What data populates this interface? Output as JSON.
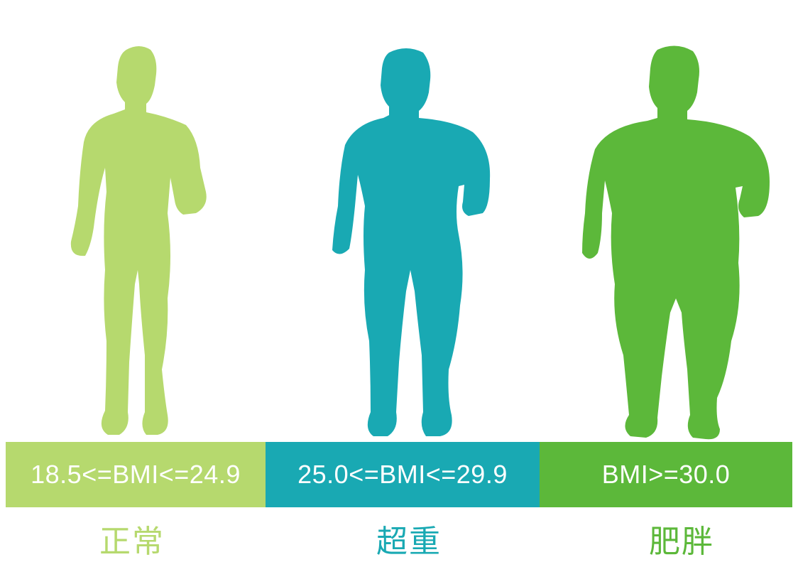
{
  "colors": {
    "normal": "#b6d96e",
    "overweight": "#19a9b3",
    "obese": "#5cb83a"
  },
  "categories": [
    {
      "id": "normal",
      "range": "18.5<=BMI<=24.9",
      "label": "正常"
    },
    {
      "id": "overweight",
      "range": "25.0<=BMI<=29.9",
      "label": "超重"
    },
    {
      "id": "obese",
      "range": "BMI>=30.0",
      "label": "肥胖"
    }
  ]
}
